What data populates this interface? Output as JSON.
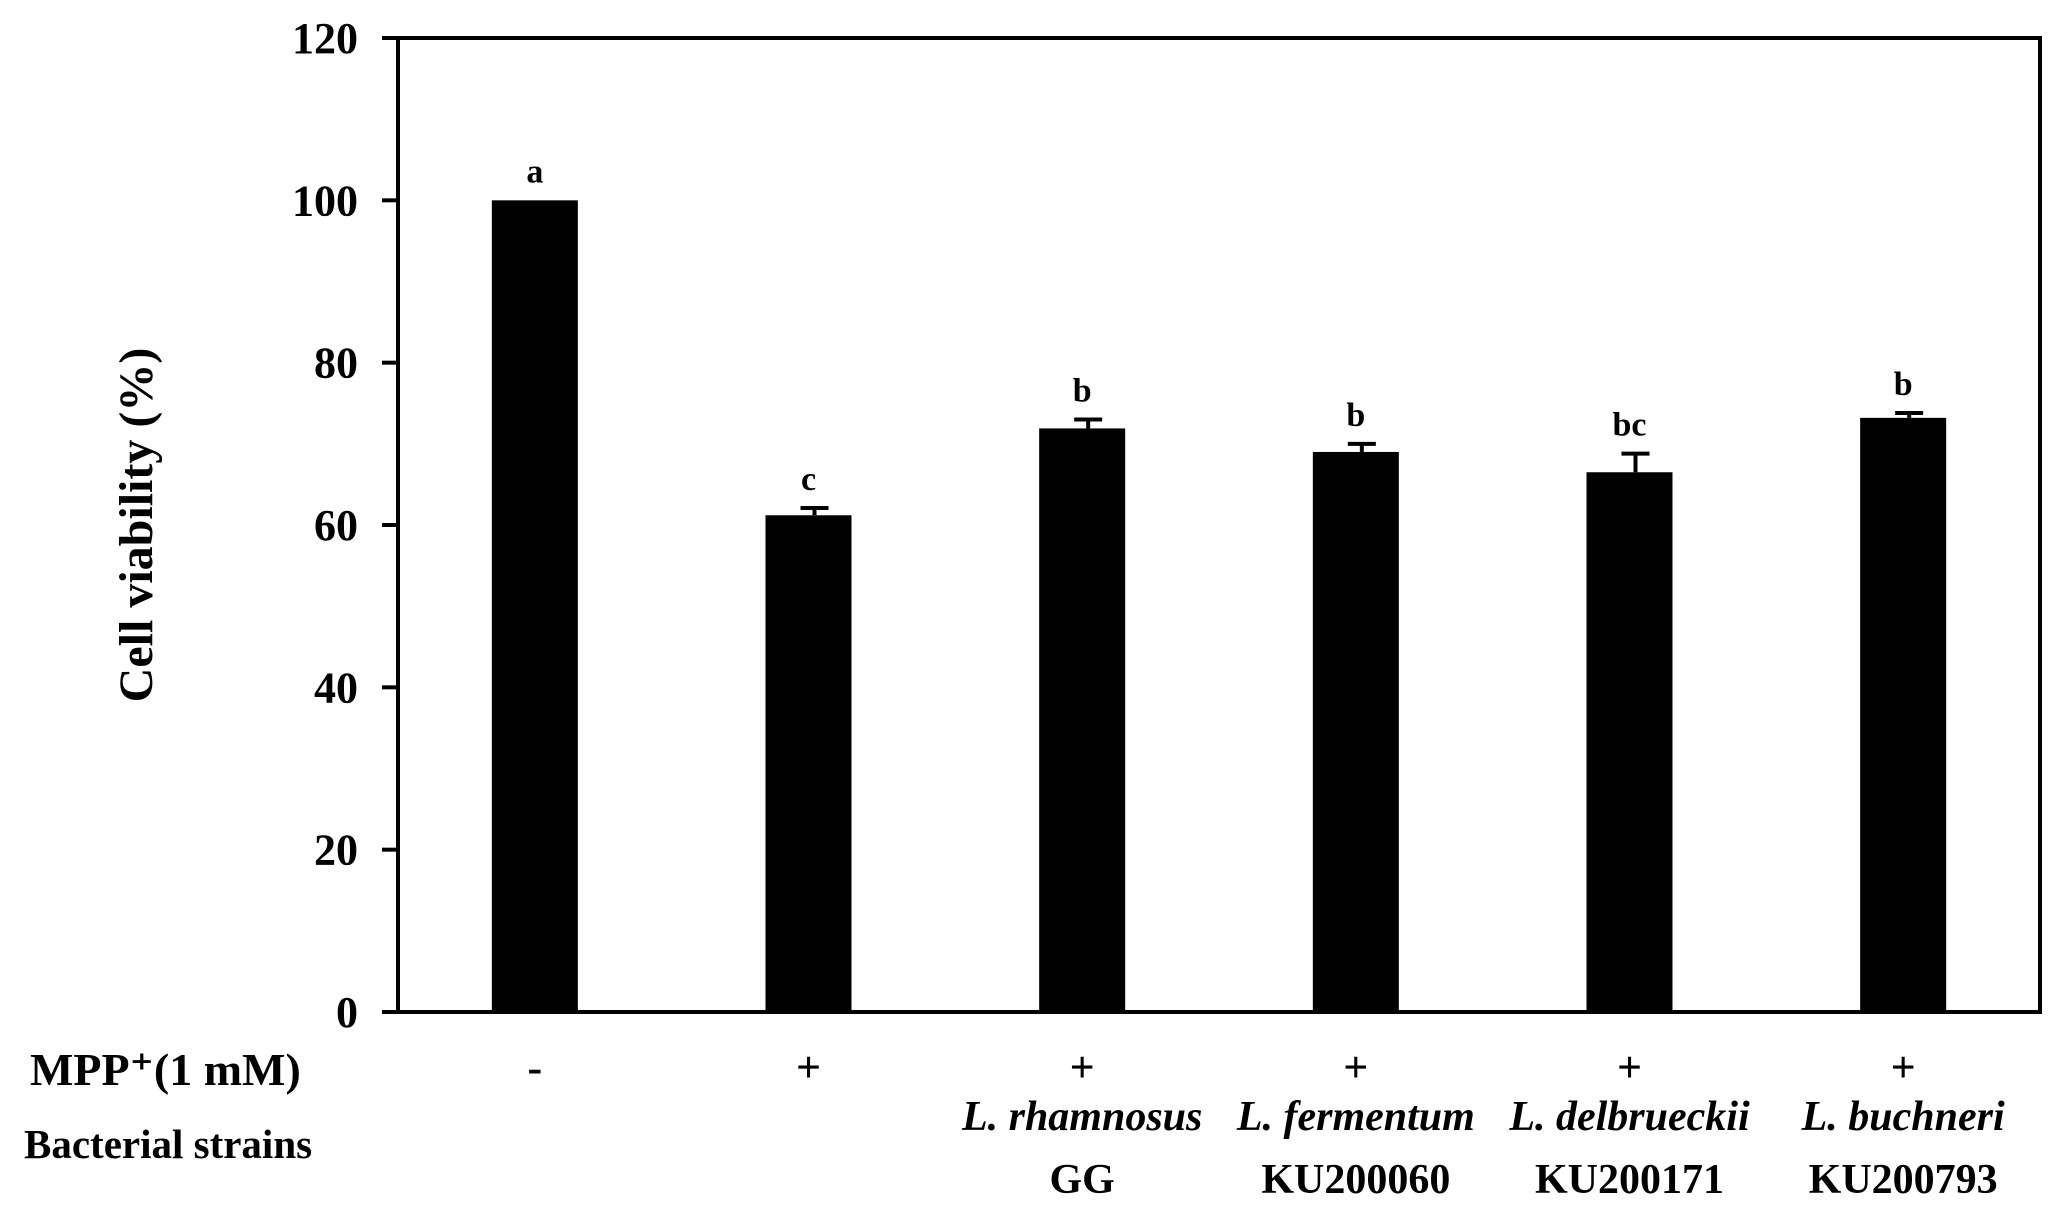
{
  "chart_data": {
    "type": "bar",
    "title": "",
    "ylabel": "Cell  viability (%)",
    "xlabel": "",
    "ylim": [
      0,
      120
    ],
    "yticks": [
      0,
      20,
      40,
      60,
      80,
      100,
      120
    ],
    "grid": false,
    "legend": "none",
    "bar_color": "#000000",
    "row_labels": {
      "mpp": "MPP⁺(1 mM)",
      "strains": "Bacterial strains"
    },
    "categories": [
      {
        "mpp": "-",
        "strain": "",
        "strain_id": "",
        "value": 100.0,
        "error": 0.0,
        "significance": "a"
      },
      {
        "mpp": "+",
        "strain": "",
        "strain_id": "",
        "value": 61.2,
        "error": 0.9,
        "significance": "c"
      },
      {
        "mpp": "+",
        "strain": "L. rhamnosus",
        "strain_id": "GG",
        "value": 71.9,
        "error": 1.1,
        "significance": "b"
      },
      {
        "mpp": "+",
        "strain": "L. fermentum",
        "strain_id": "KU200060",
        "value": 69.0,
        "error": 1.0,
        "significance": "b"
      },
      {
        "mpp": "+",
        "strain": "L. delbrueckii",
        "strain_id": "KU200171",
        "value": 66.5,
        "error": 2.3,
        "significance": "bc"
      },
      {
        "mpp": "+",
        "strain": "L. buchneri",
        "strain_id": "KU200793",
        "value": 73.2,
        "error": 0.6,
        "significance": "b"
      }
    ]
  }
}
